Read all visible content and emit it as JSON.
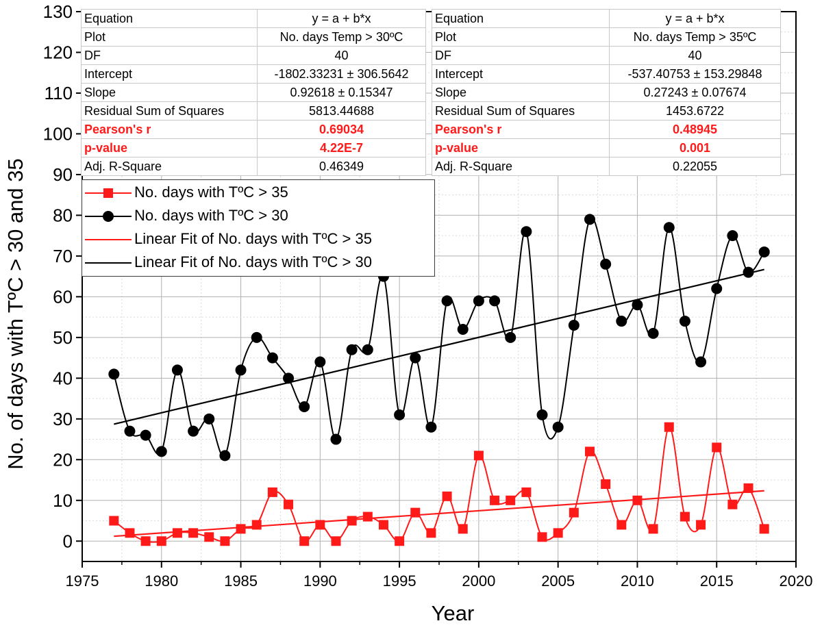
{
  "chart_data": {
    "type": "line",
    "xlabel": "Year",
    "ylabel": "No. of days with TºC > 30 and 35",
    "xlim": [
      1975,
      2020
    ],
    "ylim": [
      -5,
      130
    ],
    "x_ticks": [
      1975,
      1980,
      1985,
      1990,
      1995,
      2000,
      2005,
      2010,
      2015,
      2020
    ],
    "y_ticks": [
      0,
      10,
      20,
      30,
      40,
      50,
      60,
      70,
      80,
      90,
      100,
      110,
      120,
      130
    ],
    "grid": true,
    "legend_position": "upper-left",
    "x": [
      1977,
      1978,
      1979,
      1980,
      1981,
      1982,
      1983,
      1984,
      1985,
      1986,
      1987,
      1988,
      1989,
      1990,
      1991,
      1992,
      1993,
      1994,
      1995,
      1996,
      1997,
      1998,
      1999,
      2000,
      2001,
      2002,
      2003,
      2004,
      2005,
      2006,
      2007,
      2008,
      2009,
      2010,
      2011,
      2012,
      2013,
      2014,
      2015,
      2016,
      2017,
      2018
    ],
    "series": [
      {
        "name": "No. days with TºC > 35",
        "color": "#ff1a1a",
        "marker": "square",
        "values": [
          5,
          2,
          0,
          0,
          2,
          2,
          1,
          0,
          3,
          4,
          12,
          9,
          0,
          4,
          0,
          5,
          6,
          4,
          0,
          7,
          2,
          11,
          3,
          21,
          10,
          10,
          12,
          1,
          2,
          7,
          22,
          14,
          4,
          10,
          3,
          28,
          6,
          4,
          23,
          9,
          13,
          3
        ]
      },
      {
        "name": "No. days with TºC > 30",
        "color": "#000000",
        "marker": "circle",
        "values": [
          41,
          27,
          26,
          22,
          42,
          27,
          30,
          21,
          42,
          50,
          45,
          40,
          33,
          44,
          25,
          47,
          47,
          65,
          31,
          45,
          28,
          59,
          52,
          59,
          59,
          50,
          76,
          31,
          28,
          53,
          79,
          68,
          54,
          58,
          51,
          77,
          54,
          44,
          62,
          75,
          66,
          71
        ]
      },
      {
        "name": "Linear Fit of No. days with TºC > 35",
        "color": "#ff1a1a",
        "fit": {
          "intercept": -537.40753,
          "slope": 0.27243
        },
        "x_range": [
          1977,
          2018
        ]
      },
      {
        "name": "Linear Fit of No. days with TºC > 30",
        "color": "#000000",
        "fit": {
          "intercept": -1802.33231,
          "slope": 0.92618
        },
        "x_range": [
          1977,
          2018
        ]
      }
    ]
  },
  "stats_30": {
    "rows": [
      {
        "key": "Equation",
        "value": "y = a + b*x"
      },
      {
        "key": "Plot",
        "value": "No. days Temp > 30ºC"
      },
      {
        "key": "DF",
        "value": "40"
      },
      {
        "key": "Intercept",
        "value": "-1802.33231 ± 306.5642"
      },
      {
        "key": "Slope",
        "value": "0.92618 ± 0.15347"
      },
      {
        "key": "Residual Sum of Squares",
        "value": "5813.44688"
      },
      {
        "key": "Pearson's r",
        "value": "0.69034"
      },
      {
        "key": "p-value",
        "value": "4.22E-7"
      },
      {
        "key": "Adj. R-Square",
        "value": "0.46349"
      }
    ]
  },
  "stats_35": {
    "rows": [
      {
        "key": "Equation",
        "value": "y = a + b*x"
      },
      {
        "key": "Plot",
        "value": "No. days Temp > 35ºC"
      },
      {
        "key": "DF",
        "value": "40"
      },
      {
        "key": "Intercept",
        "value": "-537.40753 ± 153.29848"
      },
      {
        "key": "Slope",
        "value": "0.27243 ± 0.07674"
      },
      {
        "key": "Residual Sum of Squares",
        "value": "1453.6722"
      },
      {
        "key": "Pearson's r",
        "value": "0.48945"
      },
      {
        "key": "p-value",
        "value": "0.001"
      },
      {
        "key": "Adj. R-Square",
        "value": "0.22055"
      }
    ]
  },
  "legend": {
    "items": [
      {
        "label": "No. days with TºC > 35",
        "color": "#ff1a1a",
        "marker": "square"
      },
      {
        "label": "No. days with TºC > 30",
        "color": "#000000",
        "marker": "circle"
      },
      {
        "label": "Linear Fit of No. days with TºC > 35",
        "color": "#ff1a1a",
        "marker": "none"
      },
      {
        "label": "Linear Fit of No. days with TºC > 30",
        "color": "#000000",
        "marker": "none"
      }
    ]
  }
}
